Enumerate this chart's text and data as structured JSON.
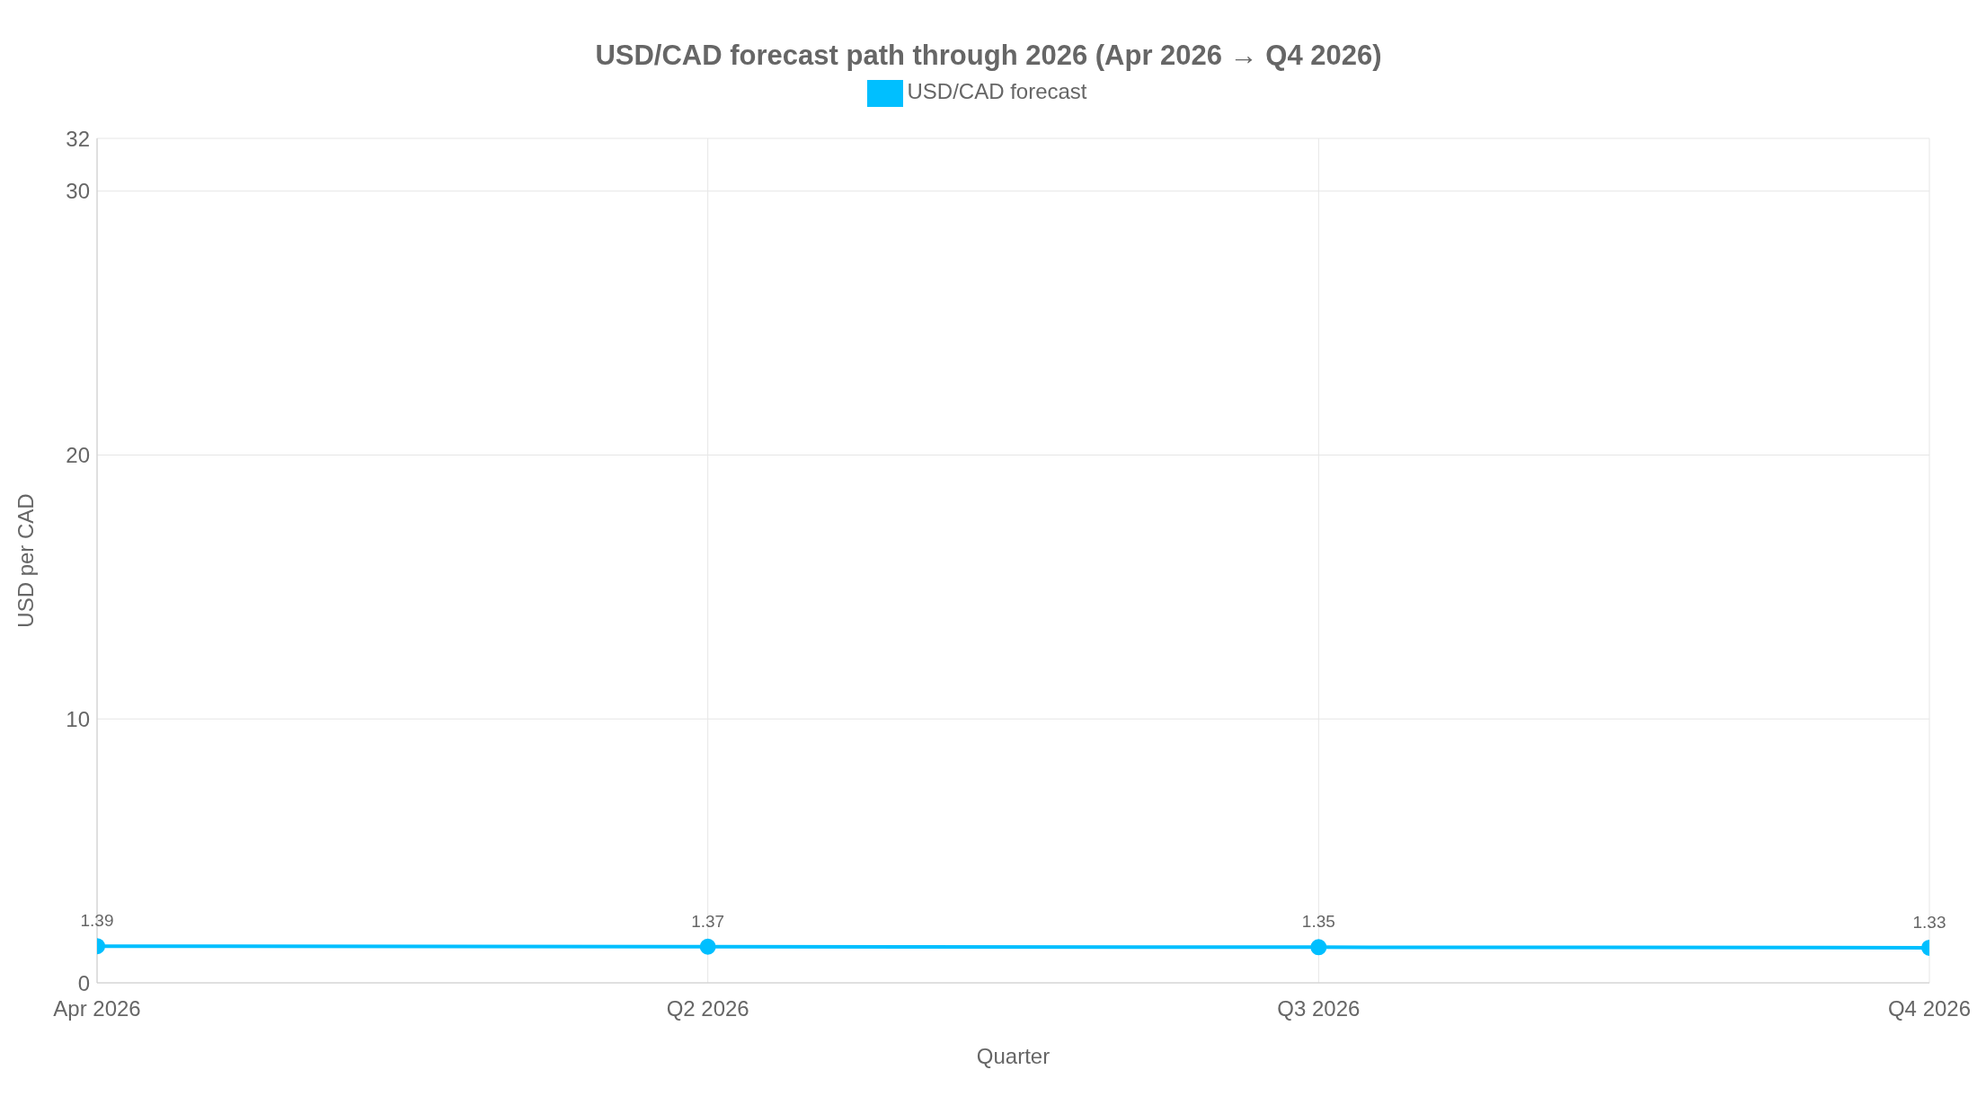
{
  "chart_data": {
    "type": "line",
    "title": "USD/CAD forecast path through 2026 (Apr 2026 → Q4 2026)",
    "xlabel": "Quarter",
    "ylabel": "USD per CAD",
    "categories": [
      "Apr 2026",
      "Q2 2026",
      "Q3 2026",
      "Q4 2026"
    ],
    "series": [
      {
        "name": "USD/CAD forecast",
        "color": "#00bfff",
        "values": [
          1.39,
          1.37,
          1.35,
          1.33
        ]
      }
    ],
    "ylim": [
      0,
      32
    ],
    "yticks": [
      0,
      10,
      20,
      30,
      32
    ],
    "grid": true,
    "legend": "top",
    "marker": "circle",
    "line_style": "solid",
    "data_labels": true
  }
}
